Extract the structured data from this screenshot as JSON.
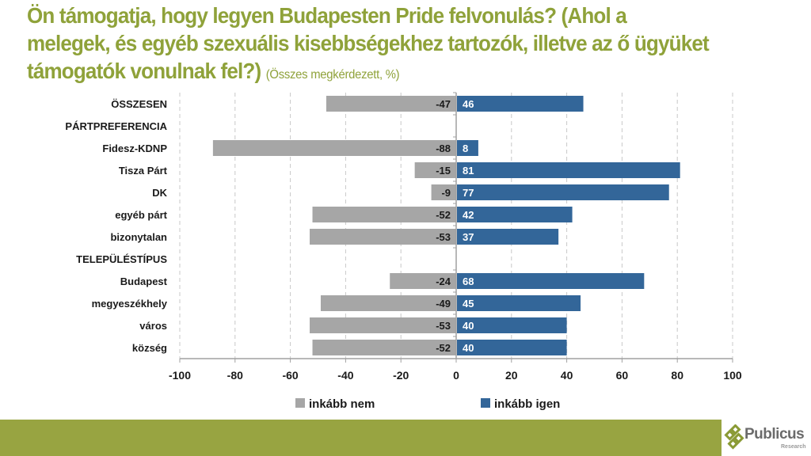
{
  "title": {
    "line1": "Ön támogatja, hogy legyen Budapesten Pride felvonulás? (Ahol a",
    "line2": "melegek, és egyéb szexuális kisebbségekhez tartozók, illetve az ő ügyüket",
    "line3": "támogatók vonulnak fel?)",
    "subtitle": "(Összes megkérdezett, %)"
  },
  "colors": {
    "title": "#8fa23a",
    "neg": "#a6a6a6",
    "pos": "#336699",
    "footer": "#98a441",
    "logo_mark": "#8a9a35"
  },
  "chart_data": {
    "type": "bar",
    "orientation": "horizontal",
    "stacked": "diverging",
    "title": "Ön támogatja, hogy legyen Budapesten Pride felvonulás? (Ahol a melegek, és egyéb szexuális kisebbségekhez tartozók, illetve az ő ügyüket támogatók vonulnak fel?)",
    "subtitle": "(Összes megkérdezett, %)",
    "categories": [
      "ÖSSZESEN",
      "PÁRTPREFERENCIA",
      "Fidesz-KDNP",
      "Tisza Párt",
      "DK",
      "egyéb párt",
      "bizonytalan",
      "TELEPÜLÉSTÍPUS",
      "Budapest",
      "megyeszékhely",
      "város",
      "község"
    ],
    "series": [
      {
        "name": "inkább nem",
        "values": [
          -47,
          null,
          -88,
          -15,
          -9,
          -52,
          -53,
          null,
          -24,
          -49,
          -53,
          -52
        ]
      },
      {
        "name": "inkább igen",
        "values": [
          46,
          null,
          8,
          81,
          77,
          42,
          37,
          null,
          68,
          45,
          40,
          40
        ]
      }
    ],
    "xlim": [
      -100,
      100
    ],
    "xticks": [
      -100,
      -80,
      -60,
      -40,
      -20,
      0,
      20,
      40,
      60,
      80,
      100
    ],
    "grid": "vertical dashed",
    "legend": "bottom",
    "xlabel": "",
    "ylabel": ""
  },
  "logo": {
    "name": "Publicus",
    "sub": "Research"
  }
}
